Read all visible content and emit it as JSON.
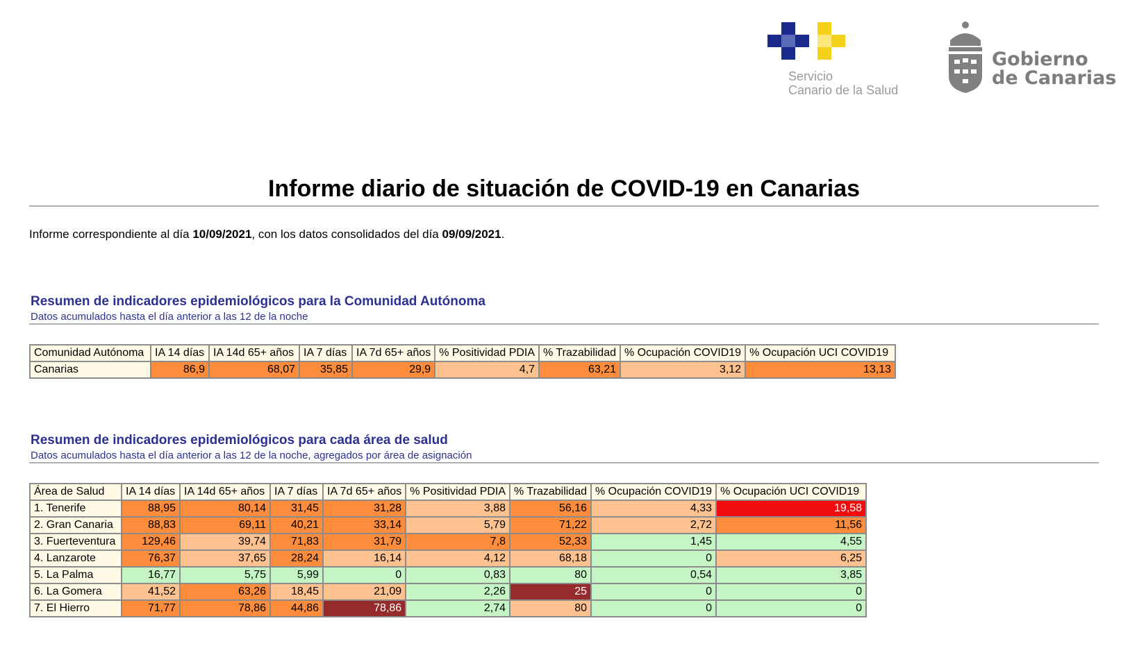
{
  "logos": {
    "sc_line1": "Servicio",
    "sc_line2": "Canario de la Salud",
    "gc_line1": "Gobierno",
    "gc_line2": "de Canarias",
    "colors": {
      "blue": "#1a2a8c",
      "yellow": "#f5d21a",
      "gray": "#808080"
    }
  },
  "title": "Informe diario de situación de COVID-19 en Canarias",
  "intro": {
    "prefix": "Informe correspondiente al día ",
    "date_report": "10/09/2021",
    "middle": ", con los datos consolidados del día ",
    "date_data": "09/09/2021",
    "suffix": "."
  },
  "section1": {
    "title": "Resumen de indicadores epidemiológicos para la Comunidad Autónoma",
    "subtitle": "Datos acumulados hasta el día anterior a las 12 de la noche",
    "headers": [
      "Comunidad Autónoma",
      "IA 14 días",
      "IA 14d 65+ años",
      "IA 7 días",
      "IA 7d 65+ años",
      "% Positividad PDIA",
      "% Trazabilidad",
      "% Ocupación COVID19",
      "% Ocupación UCI COVID19"
    ],
    "rows": [
      {
        "name": "Canarias",
        "values": [
          "86,9",
          "68,07",
          "35,85",
          "29,9",
          "4,7",
          "63,21",
          "3,12",
          "13,13"
        ],
        "colors": [
          "orange",
          "orange",
          "orange",
          "orange",
          "light",
          "orange",
          "light",
          "orange"
        ]
      }
    ]
  },
  "section2": {
    "title": "Resumen de indicadores epidemiológicos para cada área de salud",
    "subtitle": "Datos acumulados hasta el día anterior a las 12 de la noche, agregados por área de asignación",
    "headers": [
      "Área de Salud",
      "IA 14 días",
      "IA 14d 65+ años",
      "IA 7 días",
      "IA 7d 65+ años",
      "% Positividad PDIA",
      "% Trazabilidad",
      "% Ocupación COVID19",
      "% Ocupación UCI COVID19"
    ],
    "rows": [
      {
        "name": "1. Tenerife",
        "values": [
          "88,95",
          "80,14",
          "31,45",
          "31,28",
          "3,88",
          "56,16",
          "4,33",
          "19,58"
        ],
        "colors": [
          "orange",
          "orange",
          "orange",
          "orange",
          "light",
          "orange",
          "light",
          "red"
        ]
      },
      {
        "name": "2. Gran Canaria",
        "values": [
          "88,83",
          "69,11",
          "40,21",
          "33,14",
          "5,79",
          "71,22",
          "2,72",
          "11,56"
        ],
        "colors": [
          "orange",
          "orange",
          "orange",
          "orange",
          "light",
          "orange",
          "light",
          "orange"
        ]
      },
      {
        "name": "3. Fuerteventura",
        "values": [
          "129,46",
          "39,74",
          "71,83",
          "31,79",
          "7,8",
          "52,33",
          "1,45",
          "4,55"
        ],
        "colors": [
          "orange",
          "light",
          "orange",
          "orange",
          "orange",
          "orange",
          "green",
          "green"
        ]
      },
      {
        "name": "4. Lanzarote",
        "values": [
          "76,37",
          "37,65",
          "28,24",
          "16,14",
          "4,12",
          "68,18",
          "0",
          "6,25"
        ],
        "colors": [
          "orange",
          "light",
          "orange",
          "light",
          "light",
          "light",
          "green",
          "light"
        ]
      },
      {
        "name": "5. La Palma",
        "values": [
          "16,77",
          "5,75",
          "5,99",
          "0",
          "0,83",
          "80",
          "0,54",
          "3,85"
        ],
        "colors": [
          "green",
          "green",
          "green",
          "green",
          "green",
          "green",
          "green",
          "green"
        ]
      },
      {
        "name": "6. La Gomera",
        "values": [
          "41,52",
          "63,26",
          "18,45",
          "21,09",
          "2,26",
          "25",
          "0",
          "0"
        ],
        "colors": [
          "light",
          "orange",
          "light",
          "light",
          "green",
          "dark",
          "green",
          "green"
        ]
      },
      {
        "name": "7. El Hierro",
        "values": [
          "71,77",
          "78,86",
          "44,86",
          "78,86",
          "2,74",
          "80",
          "0",
          "0"
        ],
        "colors": [
          "orange",
          "orange",
          "orange",
          "dark",
          "green",
          "light",
          "green",
          "green"
        ]
      }
    ]
  }
}
